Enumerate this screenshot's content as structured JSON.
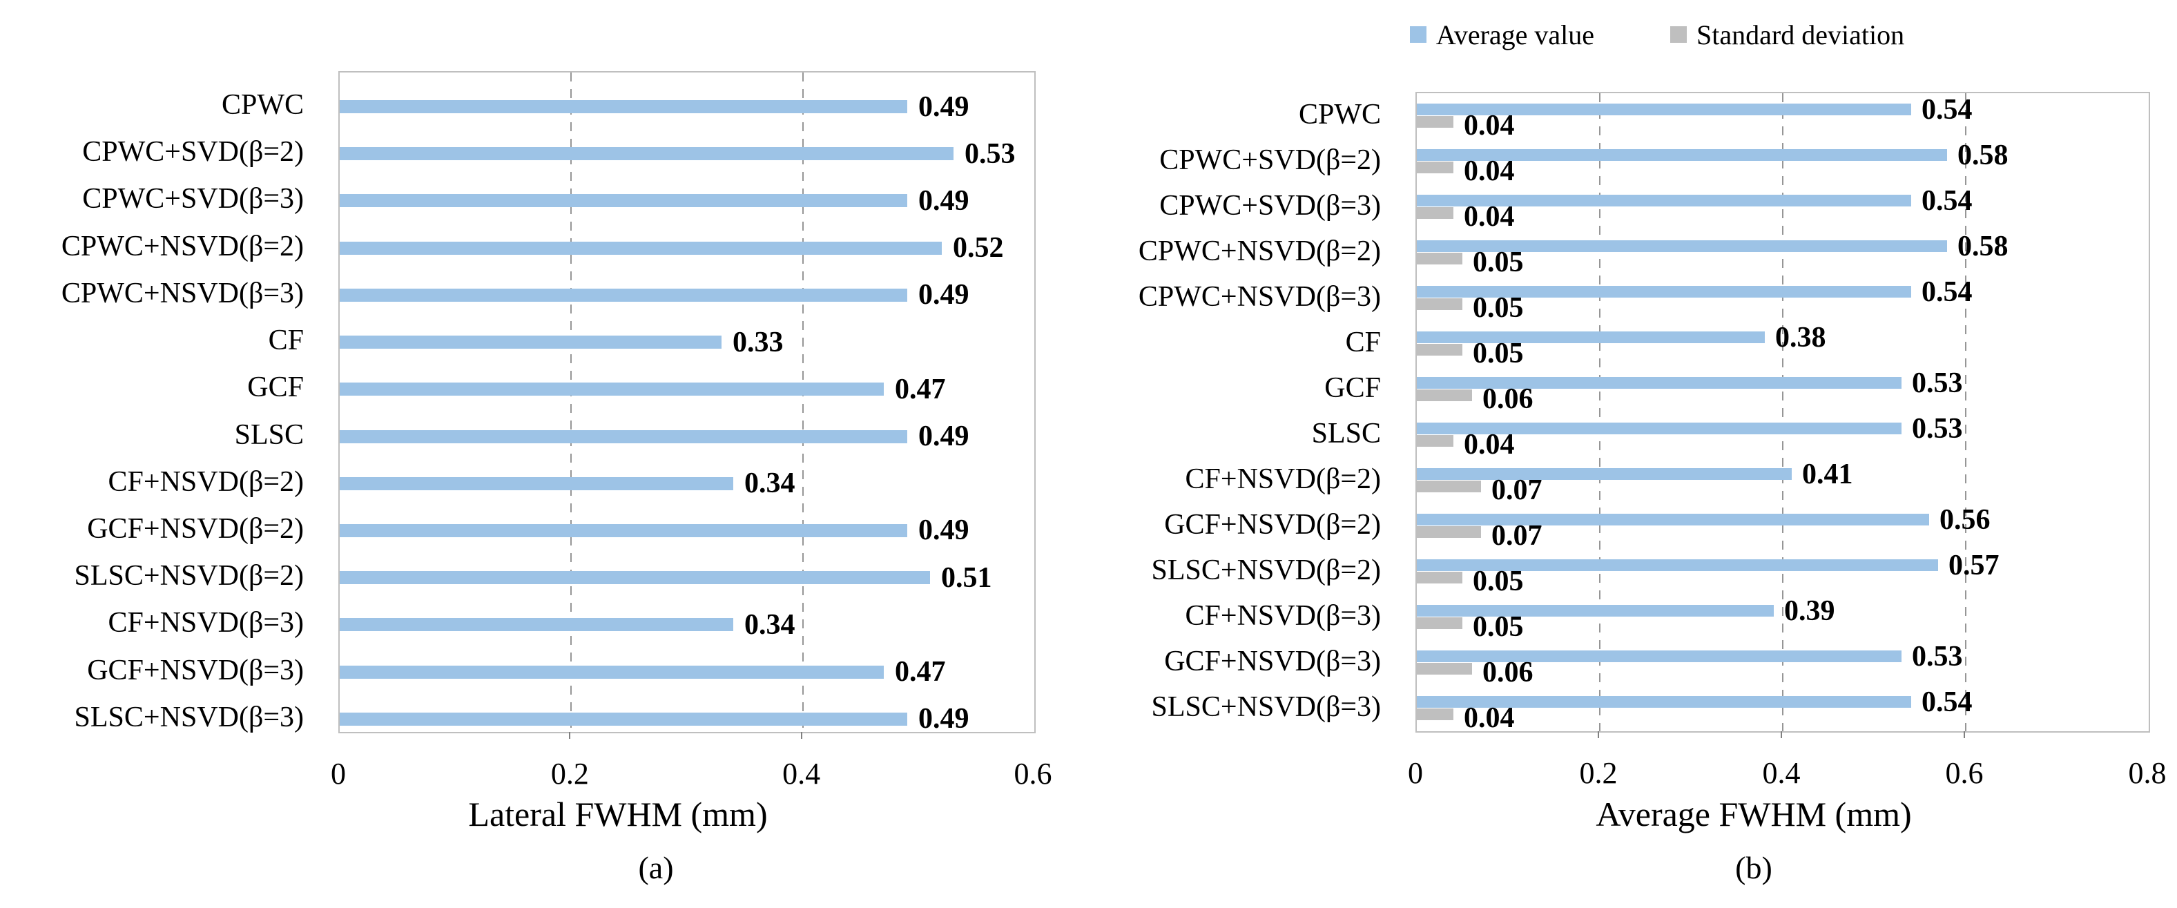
{
  "chart_data": [
    {
      "type": "bar",
      "orientation": "horizontal",
      "caption": "(a)",
      "xlabel": "Lateral FWHM (mm)",
      "xlim": [
        0,
        0.6
      ],
      "xticks": [
        "0",
        "0.2",
        "0.4",
        "0.6"
      ],
      "grid": "dashed-vertical",
      "legend_position": "none",
      "bar_color": "#9DC3E6",
      "categories": [
        "CPWC",
        "CPWC+SVD(β=2)",
        "CPWC+SVD(β=3)",
        "CPWC+NSVD(β=2)",
        "CPWC+NSVD(β=3)",
        "CF",
        "GCF",
        "SLSC",
        "CF+NSVD(β=2)",
        "GCF+NSVD(β=2)",
        "SLSC+NSVD(β=2)",
        "CF+NSVD(β=3)",
        "GCF+NSVD(β=3)",
        "SLSC+NSVD(β=3)"
      ],
      "values": [
        0.49,
        0.53,
        0.49,
        0.52,
        0.49,
        0.33,
        0.47,
        0.49,
        0.34,
        0.49,
        0.51,
        0.34,
        0.47,
        0.49
      ]
    },
    {
      "type": "bar",
      "orientation": "horizontal",
      "caption": "(b)",
      "xlabel": "Average FWHM (mm)",
      "xlim": [
        0,
        0.8
      ],
      "xticks": [
        "0",
        "0.2",
        "0.4",
        "0.6",
        "0.8"
      ],
      "grid": "dashed-vertical",
      "legend_position": "top",
      "categories": [
        "CPWC",
        "CPWC+SVD(β=2)",
        "CPWC+SVD(β=3)",
        "CPWC+NSVD(β=2)",
        "CPWC+NSVD(β=3)",
        "CF",
        "GCF",
        "SLSC",
        "CF+NSVD(β=2)",
        "GCF+NSVD(β=2)",
        "SLSC+NSVD(β=2)",
        "CF+NSVD(β=3)",
        "GCF+NSVD(β=3)",
        "SLSC+NSVD(β=3)"
      ],
      "series": [
        {
          "name": "Average value",
          "color": "#9DC3E6",
          "values": [
            0.54,
            0.58,
            0.54,
            0.58,
            0.54,
            0.38,
            0.53,
            0.53,
            0.41,
            0.56,
            0.57,
            0.39,
            0.53,
            0.54
          ]
        },
        {
          "name": "Standard deviation",
          "color": "#BFBFBF",
          "values": [
            0.04,
            0.04,
            0.04,
            0.05,
            0.05,
            0.05,
            0.06,
            0.04,
            0.07,
            0.07,
            0.05,
            0.05,
            0.06,
            0.04
          ]
        }
      ]
    }
  ],
  "colors": {
    "average_bar": "#9DC3E6",
    "std_bar": "#BFBFBF",
    "gridline": "#969696",
    "plot_border": "#BFBFBF"
  }
}
